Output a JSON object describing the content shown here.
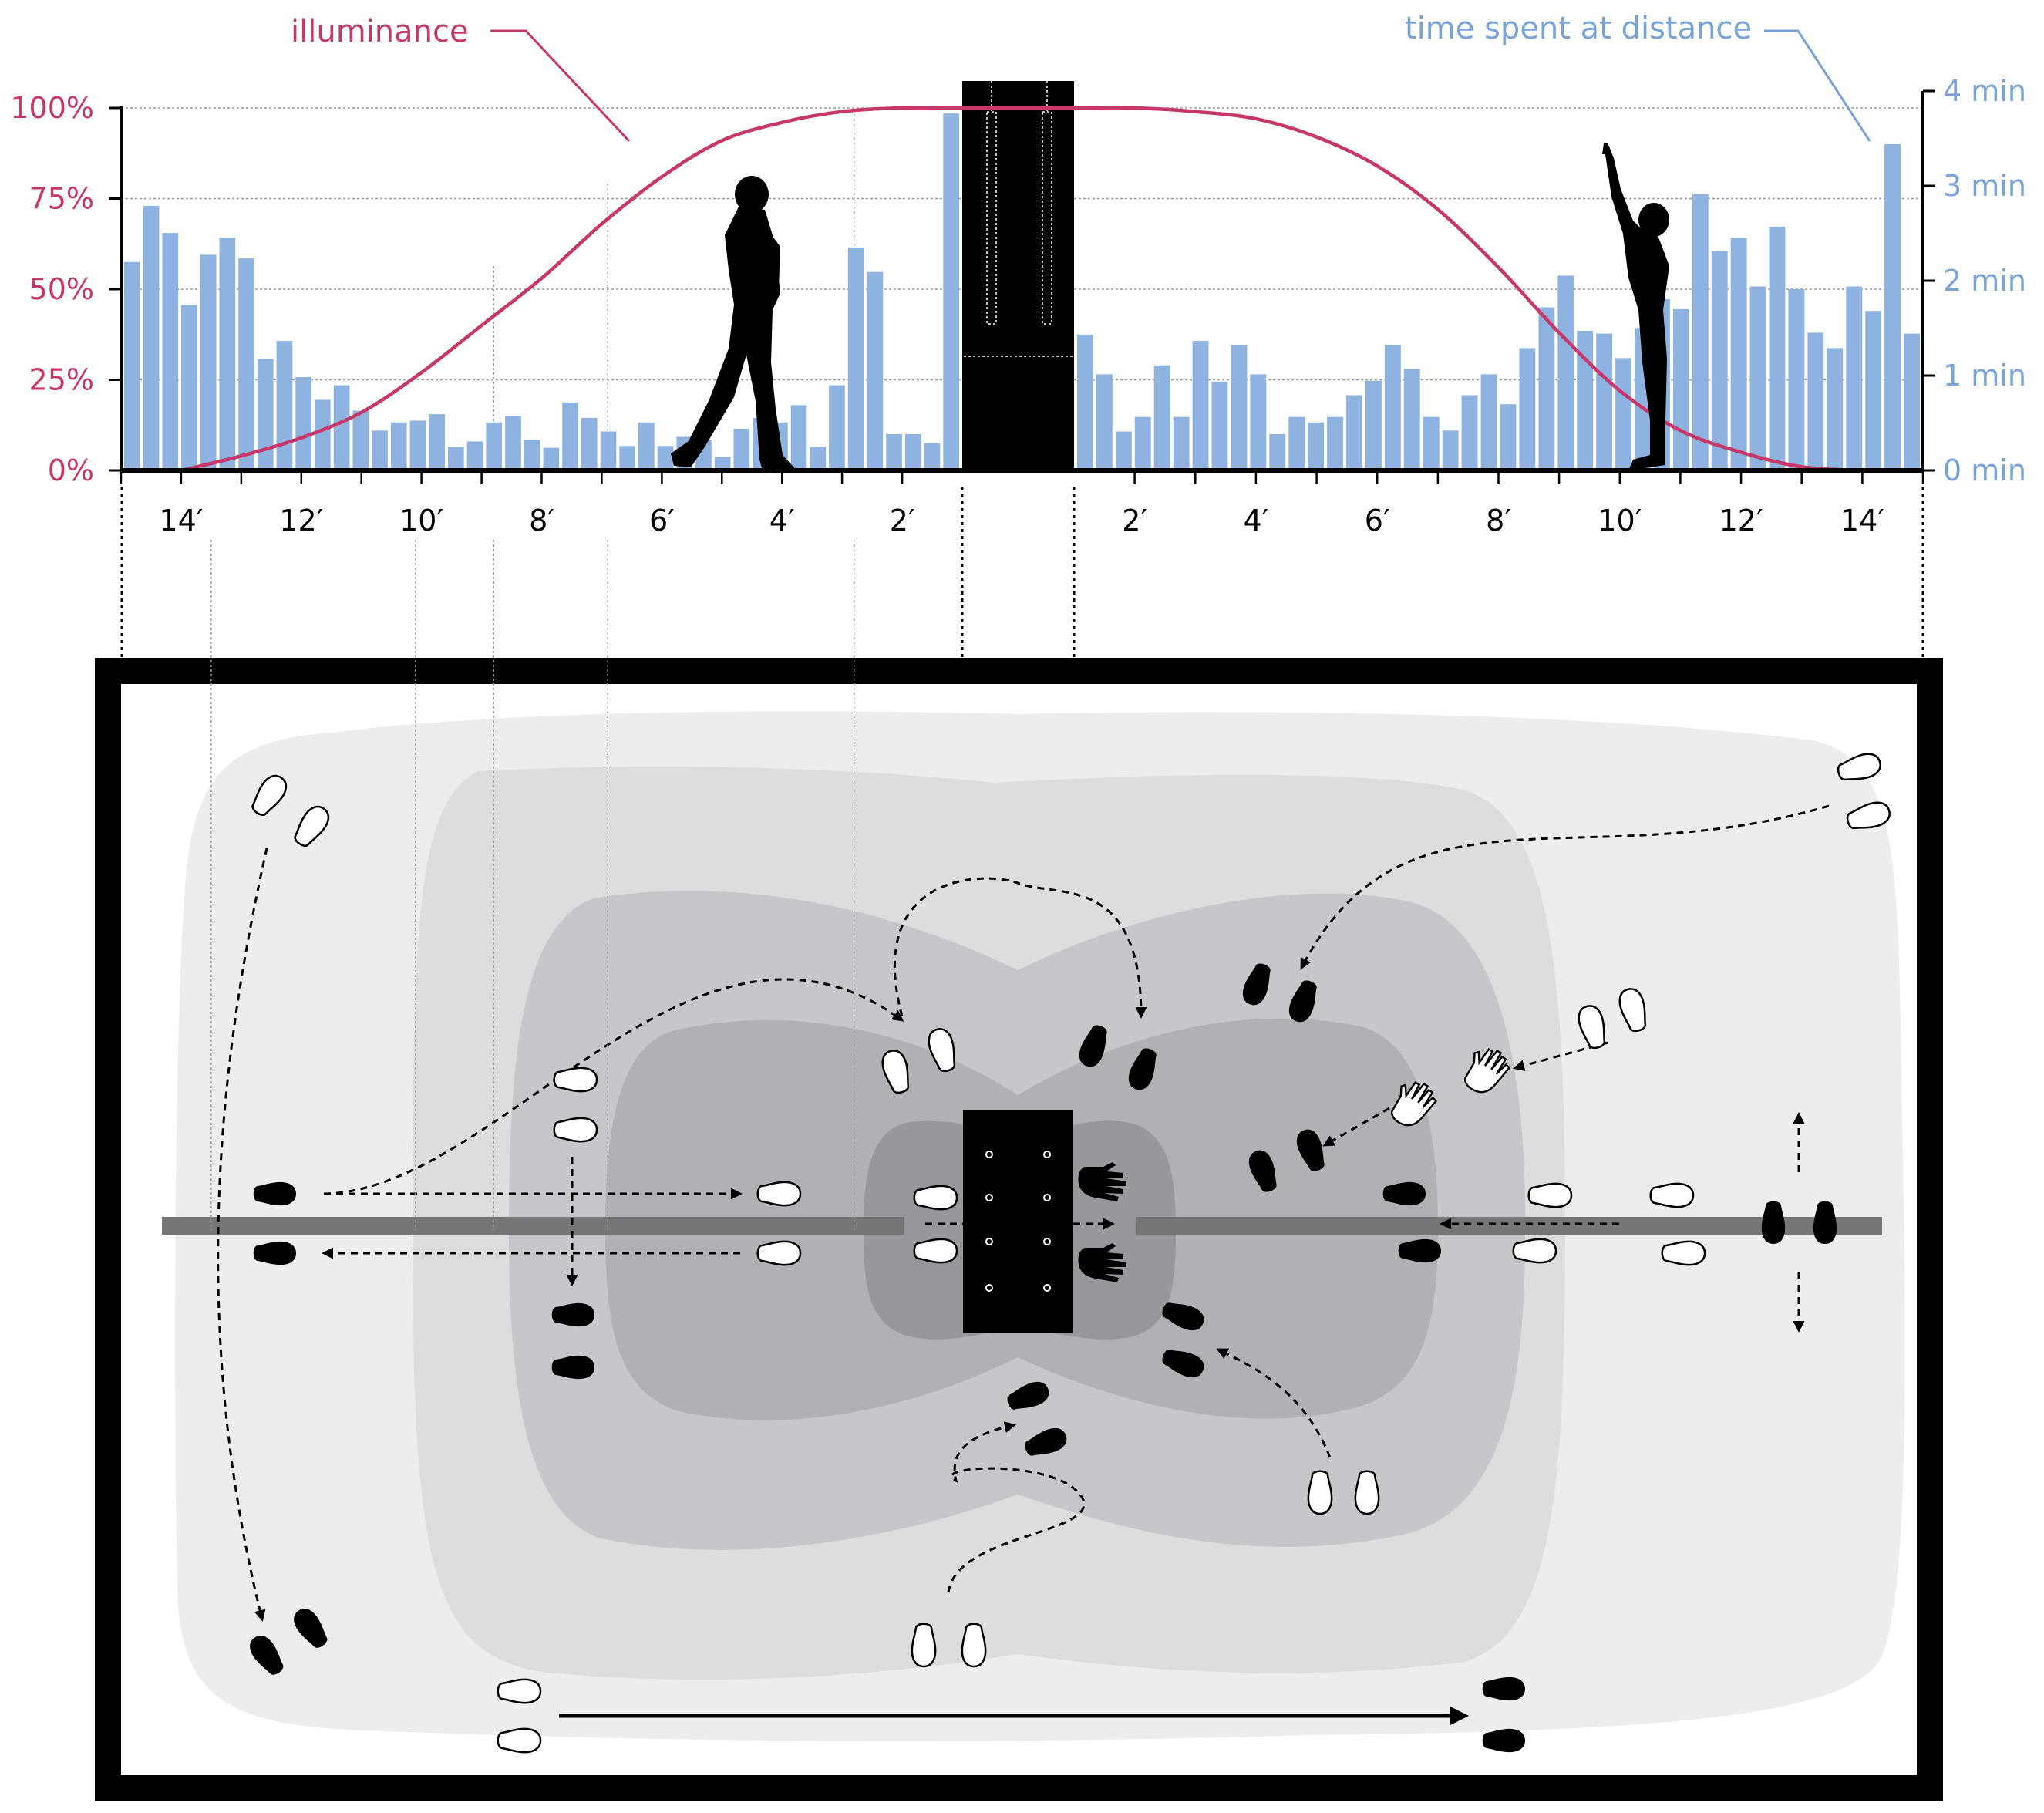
{
  "legend": {
    "illuminance": "illuminance",
    "time": "time spent at distance"
  },
  "colors": {
    "illuminance": "#c8376a",
    "bars": "#8fb3e0",
    "time_axis_text": "#7aa3d8",
    "object": "#000000",
    "zone1": "#eceded",
    "zone2": "#dcdddf",
    "zone3": "#c6c7ca",
    "zone4": "#b0b1b4",
    "zone5": "#97989b",
    "path": "#767676"
  },
  "chart_data": {
    "type": "bar",
    "xlabel": "",
    "left_axis": {
      "ylim": [
        0,
        100
      ],
      "ticks": [
        "0%",
        "25%",
        "50%",
        "75%",
        "100%"
      ]
    },
    "right_axis": {
      "ylim": [
        0,
        4
      ],
      "ticks": [
        "0 min",
        "1 min",
        "2 min",
        "3 min",
        "4 min"
      ]
    },
    "x_ticks_left": [
      "14′",
      "12′",
      "10′",
      "8′",
      "6′",
      "4′",
      "2′"
    ],
    "x_ticks_right": [
      "2′",
      "4′",
      "6′",
      "8′",
      "10′",
      "12′",
      "14′"
    ],
    "x_range_ft": 15,
    "object_halfwidth_ft": 1,
    "series": [
      {
        "name": "time spent at distance",
        "axis": "right",
        "unit": "min",
        "left_side_bins_far_to_near": [
          2.3,
          2.92,
          2.62,
          1.83,
          2.38,
          2.57,
          2.34,
          1.23,
          1.43,
          1.03,
          0.78,
          0.94,
          0.66,
          0.44,
          0.53,
          0.55,
          0.62,
          0.26,
          0.32,
          0.53,
          0.6,
          0.34,
          0.25,
          0.75,
          0.58,
          0.43,
          0.27,
          0.53,
          0.27,
          0.37,
          0.34,
          0.15,
          0.46,
          0.58,
          0.53,
          0.72,
          0.26,
          0.94,
          2.46,
          2.19,
          0.4,
          0.4,
          0.3,
          3.94
        ],
        "right_side_bins_near_to_far": [
          1.5,
          1.06,
          0.43,
          0.59,
          1.16,
          0.59,
          1.43,
          0.98,
          1.38,
          1.06,
          0.4,
          0.59,
          0.53,
          0.59,
          0.83,
          0.99,
          1.38,
          1.12,
          0.59,
          0.44,
          0.83,
          1.06,
          0.73,
          1.35,
          1.8,
          2.15,
          1.54,
          1.51,
          1.24,
          1.57,
          1.89,
          1.78,
          3.05,
          2.42,
          2.57,
          2.03,
          2.69,
          2.0,
          1.52,
          1.35,
          2.03,
          1.76,
          3.6,
          1.51
        ]
      },
      {
        "name": "illuminance",
        "axis": "left",
        "unit": "%",
        "x_ft": [
          -14.0,
          -13.0,
          -12.0,
          -11.0,
          -10.0,
          -9.0,
          -8.0,
          -7.0,
          -6.0,
          -5.0,
          -4.0,
          -3.0,
          -2.0,
          -1.0,
          1.0,
          2.0,
          3.0,
          4.0,
          5.0,
          6.0,
          7.0,
          8.0,
          9.0,
          10.0,
          11.0,
          12.0,
          13.0,
          14.0
        ],
        "y_pct": [
          0,
          4,
          9,
          16,
          27,
          40,
          53,
          68,
          81,
          91,
          96,
          99,
          100,
          100,
          100,
          100,
          99,
          97,
          92,
          84,
          72,
          56,
          38,
          22,
          11,
          5,
          1,
          0
        ]
      }
    ]
  }
}
